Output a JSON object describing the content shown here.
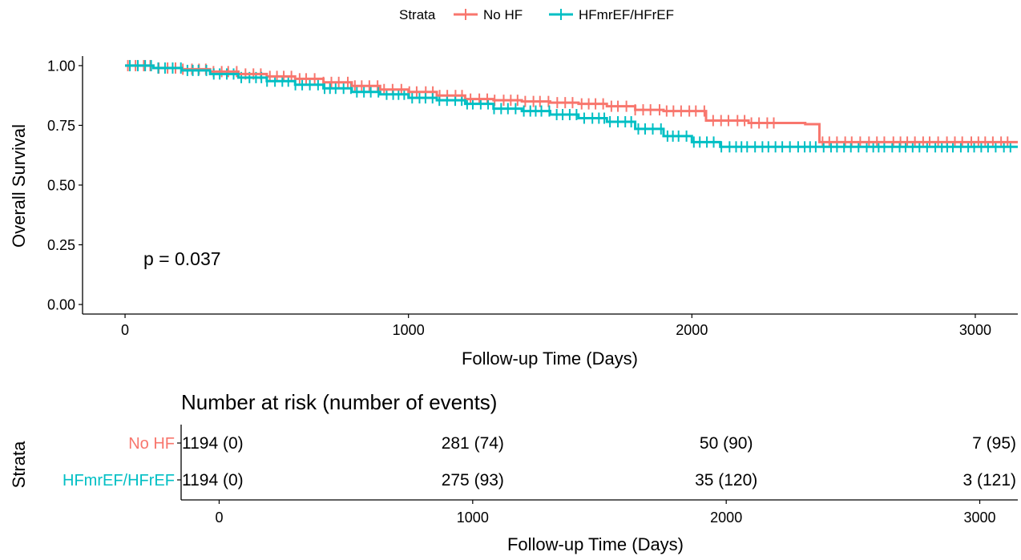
{
  "legend": {
    "title": "Strata",
    "position": "top",
    "entries": [
      {
        "label": "No HF",
        "color": "#F8766D"
      },
      {
        "label": "HFmrEF/HFrEF",
        "color": "#00BFC4"
      }
    ]
  },
  "p_value_text": "p = 0.037",
  "risk_table": {
    "title": "Number at risk (number of events)",
    "ylabel": "Strata",
    "xlabel": "Follow-up Time (Days)",
    "x_ticks": [
      0,
      1000,
      2000,
      3000
    ],
    "rows": [
      {
        "label": "No HF",
        "color": "#F8766D",
        "cells": [
          "1194 (0)",
          "281 (74)",
          "50 (90)",
          "7 (95)"
        ]
      },
      {
        "label": "HFmrEF/HFrEF",
        "color": "#00BFC4",
        "cells": [
          "1194 (0)",
          "275 (93)",
          "35 (120)",
          "3 (121)"
        ]
      }
    ]
  },
  "chart_data": {
    "type": "line",
    "title": "",
    "xlabel": "Follow-up Time (Days)",
    "ylabel": "Overall Survival",
    "xlim": [
      -150,
      3150
    ],
    "ylim": [
      -0.04,
      1.04
    ],
    "x_ticks": [
      0,
      1000,
      2000,
      3000
    ],
    "y_ticks": [
      0.0,
      0.25,
      0.5,
      0.75,
      1.0
    ],
    "y_tick_labels": [
      "0.00",
      "0.25",
      "0.50",
      "0.75",
      "1.00"
    ],
    "grid": false,
    "censor_marks": true,
    "series": [
      {
        "name": "No HF",
        "color": "#F8766D",
        "x": [
          0,
          100,
          200,
          300,
          400,
          500,
          600,
          700,
          800,
          900,
          1000,
          1100,
          1200,
          1300,
          1400,
          1500,
          1600,
          1700,
          1800,
          1900,
          2000,
          2050,
          2200,
          2400,
          2450,
          2500,
          3150
        ],
        "y": [
          1.0,
          0.99,
          0.985,
          0.975,
          0.965,
          0.955,
          0.945,
          0.93,
          0.915,
          0.9,
          0.89,
          0.875,
          0.86,
          0.855,
          0.85,
          0.845,
          0.84,
          0.83,
          0.815,
          0.81,
          0.81,
          0.77,
          0.76,
          0.755,
          0.68,
          0.68,
          0.68
        ]
      },
      {
        "name": "HFmrEF/HFrEF",
        "color": "#00BFC4",
        "x": [
          0,
          100,
          200,
          300,
          400,
          500,
          600,
          700,
          800,
          900,
          1000,
          1100,
          1200,
          1300,
          1400,
          1500,
          1600,
          1700,
          1800,
          1900,
          2000,
          2100,
          2500,
          3150
        ],
        "y": [
          1.0,
          0.99,
          0.98,
          0.965,
          0.95,
          0.935,
          0.92,
          0.905,
          0.89,
          0.88,
          0.865,
          0.855,
          0.84,
          0.82,
          0.81,
          0.795,
          0.78,
          0.765,
          0.735,
          0.705,
          0.68,
          0.66,
          0.66,
          0.66
        ]
      }
    ]
  }
}
